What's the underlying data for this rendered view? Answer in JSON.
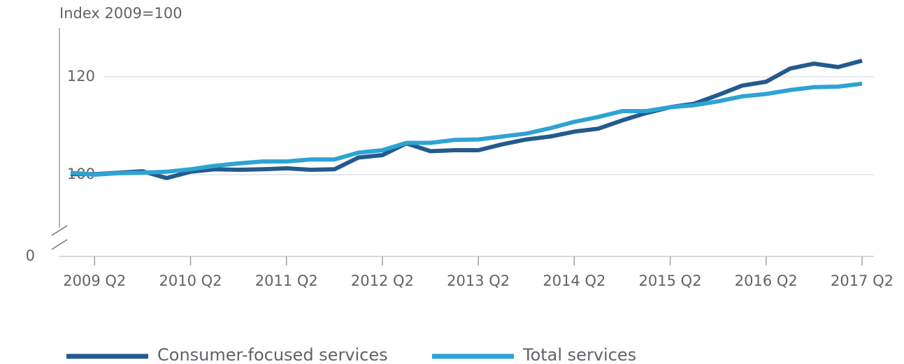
{
  "chart_data": {
    "type": "line",
    "y_label": "Index 2009=100",
    "categories": [
      null,
      "2009 Q2",
      null,
      null,
      null,
      "2010 Q2",
      null,
      null,
      null,
      "2011 Q2",
      null,
      null,
      null,
      "2012 Q2",
      null,
      null,
      null,
      "2013 Q2",
      null,
      null,
      null,
      "2014 Q2",
      null,
      null,
      null,
      "2015 Q2",
      null,
      null,
      null,
      "2016 Q2",
      null,
      null,
      null,
      "2017 Q2"
    ],
    "series": [
      {
        "name": "Consumer-focused services",
        "color": "#245a8d",
        "values": [
          100.1,
          100.1,
          100.4,
          100.7,
          99.3,
          100.6,
          101.1,
          101.0,
          101.1,
          101.3,
          101.0,
          101.1,
          103.5,
          104.0,
          106.4,
          104.8,
          105.0,
          105.0,
          106.2,
          107.2,
          107.8,
          108.8,
          109.4,
          111.1,
          112.6,
          113.8,
          114.5,
          116.3,
          118.2,
          119.0,
          121.7,
          122.7,
          122.0,
          123.3
        ]
      },
      {
        "name": "Total services",
        "color": "#2ea3d4",
        "values": [
          100.4,
          100.0,
          100.3,
          100.4,
          100.6,
          101.1,
          101.8,
          102.3,
          102.7,
          102.7,
          103.1,
          103.1,
          104.5,
          105.0,
          106.5,
          106.5,
          107.1,
          107.2,
          107.8,
          108.4,
          109.5,
          110.8,
          111.8,
          113.0,
          113.0,
          113.8,
          114.2,
          115.0,
          116.0,
          116.5,
          117.3,
          117.9,
          118.0,
          118.6
        ]
      }
    ],
    "ylim": [
      0,
      130
    ],
    "yticks": [
      0,
      100,
      120
    ],
    "axis_break": true,
    "grid": true,
    "legend": "bottom"
  }
}
